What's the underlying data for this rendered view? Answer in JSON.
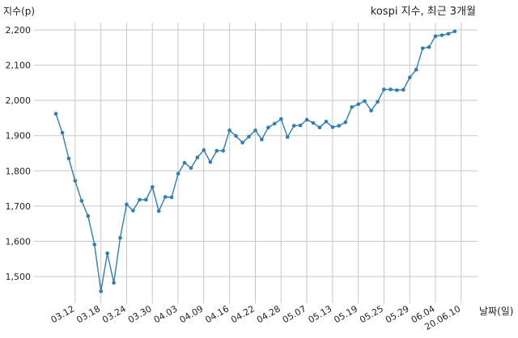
{
  "chart_data": {
    "type": "line",
    "title": "kospi 지수, 최근 3개월",
    "ylabel": "지수(p)",
    "xlabel": "날짜(일)",
    "ylim": [
      1420,
      2225
    ],
    "yticks": [
      1500,
      1600,
      1700,
      1800,
      1900,
      2000,
      2100,
      2200
    ],
    "ytick_labels": [
      "1,500",
      "1,600",
      "1,700",
      "1,800",
      "1,900",
      "2,000",
      "2,100",
      "2,200"
    ],
    "xtick_labels": [
      "03.12",
      "03.18",
      "03.24",
      "03.30",
      "04.03",
      "04.09",
      "04.16",
      "04.22",
      "04.28",
      "05.07",
      "05.13",
      "05.19",
      "05.25",
      "05.29",
      "06.04",
      "20.06.10"
    ],
    "xtick_positions": [
      3,
      7,
      11,
      15,
      19,
      23,
      27,
      31,
      35,
      39,
      43,
      47,
      51,
      55,
      59,
      63
    ],
    "grid": true,
    "color": "#2e7db3",
    "series": [
      {
        "values": [
          1962,
          1908,
          1835,
          1772,
          1715,
          1672,
          1591,
          1458,
          1566,
          1482,
          1610,
          1705,
          1687,
          1718,
          1718,
          1754,
          1686,
          1726,
          1725,
          1792,
          1823,
          1808,
          1838,
          1859,
          1825,
          1857,
          1857,
          1915,
          1899,
          1880,
          1897,
          1915,
          1889,
          1923,
          1934,
          1947,
          1896,
          1928,
          1929,
          1945,
          1936,
          1923,
          1940,
          1924,
          1928,
          1938,
          1981,
          1989,
          1998,
          1971,
          1996,
          2031,
          2031,
          2029,
          2030,
          2065,
          2087,
          2148,
          2151,
          2182,
          2185,
          2189,
          2196
        ]
      }
    ]
  }
}
